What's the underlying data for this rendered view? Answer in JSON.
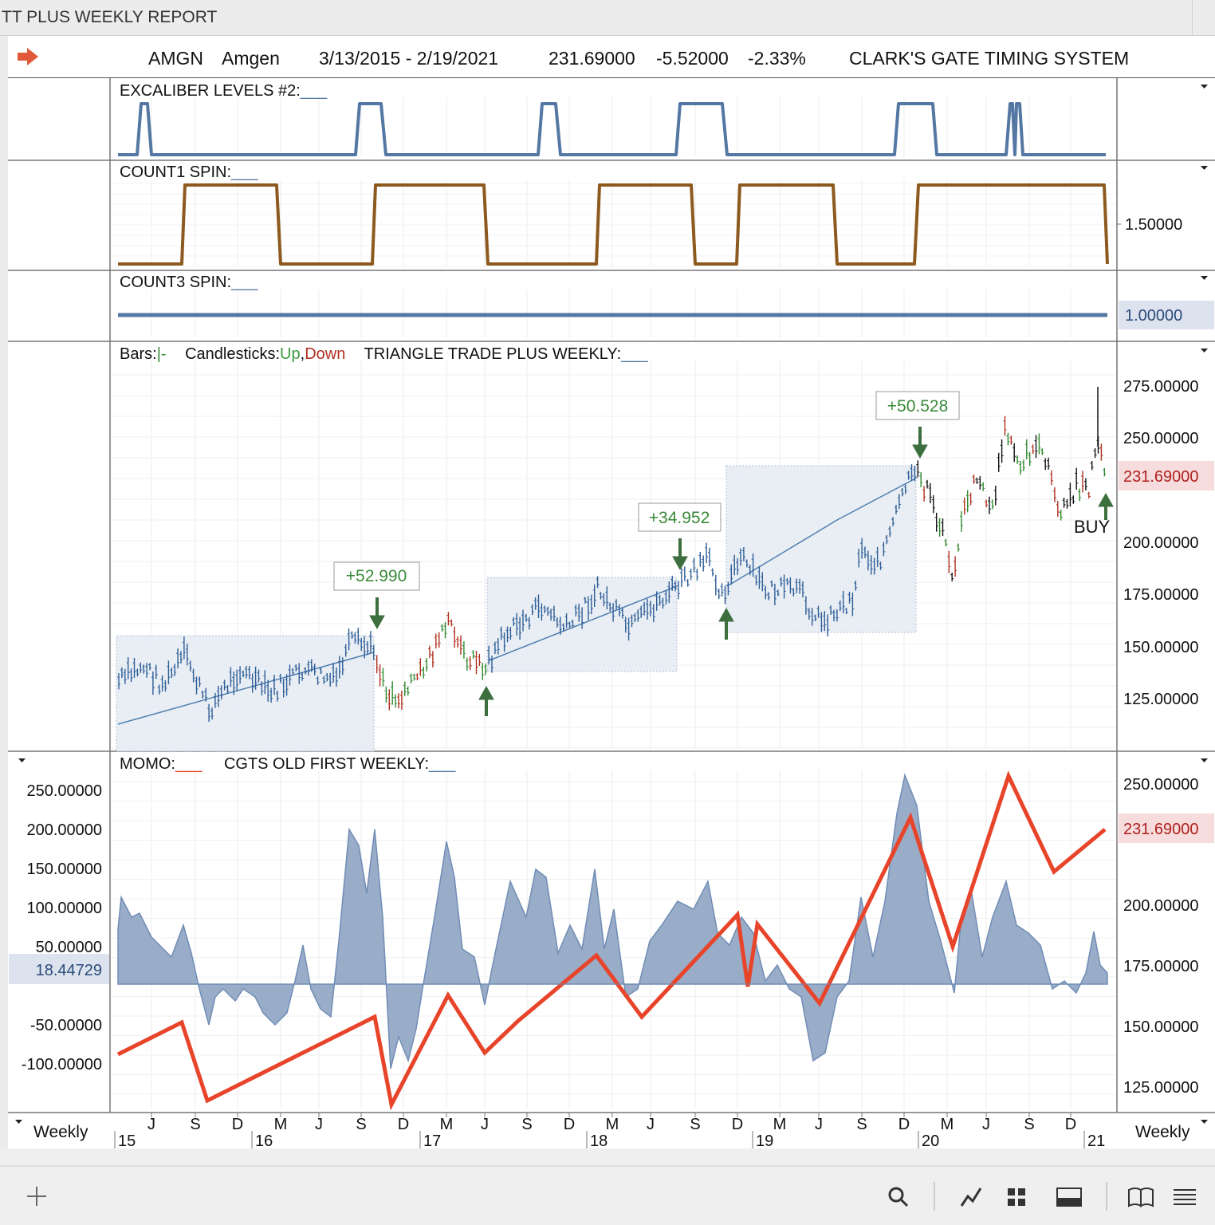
{
  "window": {
    "title": "TT PLUS WEEKLY REPORT"
  },
  "header": {
    "symbol": "AMGN",
    "name": "Amgen",
    "date_range": "3/13/2015 - 2/19/2021",
    "last": "231.69000",
    "change": "-5.52000",
    "change_pct": "-2.33%",
    "system": "CLARK'S GATE TIMING SYSTEM",
    "arrow_icon": "right-arrow-icon"
  },
  "panels": {
    "excaliber": {
      "label": "EXCALIBER LEVELS #2:",
      "swatch": "___",
      "color": "#5577a3"
    },
    "count1": {
      "label": "COUNT1 SPIN:",
      "swatch": "___",
      "color": "#8c5a1e",
      "axis_label": "1.50000"
    },
    "count3": {
      "label": "COUNT3 SPIN:",
      "swatch": "___",
      "color": "#5577a3",
      "value_badge": "1.00000"
    },
    "price": {
      "bars_label": "Bars:",
      "bars_swatch": "|-",
      "candles_label": "Candlesticks:",
      "up_label": "Up",
      "comma": ",",
      "down_label": "Down",
      "indicator_label": "TRIANGLE TRADE PLUS WEEKLY:",
      "indicator_swatch": "___",
      "axis": [
        "275.00000",
        "250.00000",
        "200.00000",
        "175.00000",
        "150.00000",
        "125.00000"
      ],
      "last_badge": "231.69000",
      "buy_label": "BUY",
      "trade_labels": [
        "+52.990",
        "+34.952",
        "+50.528"
      ]
    },
    "momo": {
      "label": "MOMO:",
      "swatch": "___",
      "indicator_label": "CGTS OLD FIRST WEEKLY:",
      "indicator_swatch": "___",
      "left_axis": [
        "250.00000",
        "200.00000",
        "150.00000",
        "100.00000",
        "50.00000",
        "-50.00000",
        "-100.00000"
      ],
      "left_badge": "18.44729",
      "right_axis": [
        "250.00000",
        "200.00000",
        "175.00000",
        "150.00000",
        "125.00000"
      ],
      "right_badge": "231.69000"
    }
  },
  "time_axis": {
    "months": [
      "J",
      "S",
      "D",
      "M",
      "J",
      "S",
      "D",
      "M",
      "J",
      "S",
      "D",
      "M",
      "J",
      "S",
      "D",
      "M",
      "J",
      "S",
      "D",
      "M",
      "J",
      "S",
      "D"
    ],
    "years": [
      "15",
      "16",
      "17",
      "18",
      "19",
      "20",
      "21"
    ],
    "period_left": "Weekly",
    "period_right": "Weekly"
  },
  "toolbar": {
    "icons": [
      "add-icon",
      "search-icon",
      "line-chart-icon",
      "grid-icon",
      "panel-icon",
      "book-icon",
      "menu-icon"
    ]
  },
  "colors": {
    "blue": "#5577a3",
    "red": "#e8442a",
    "green": "#3a8a3a",
    "brown": "#8c5a1e",
    "fill": "#99acc8"
  }
}
